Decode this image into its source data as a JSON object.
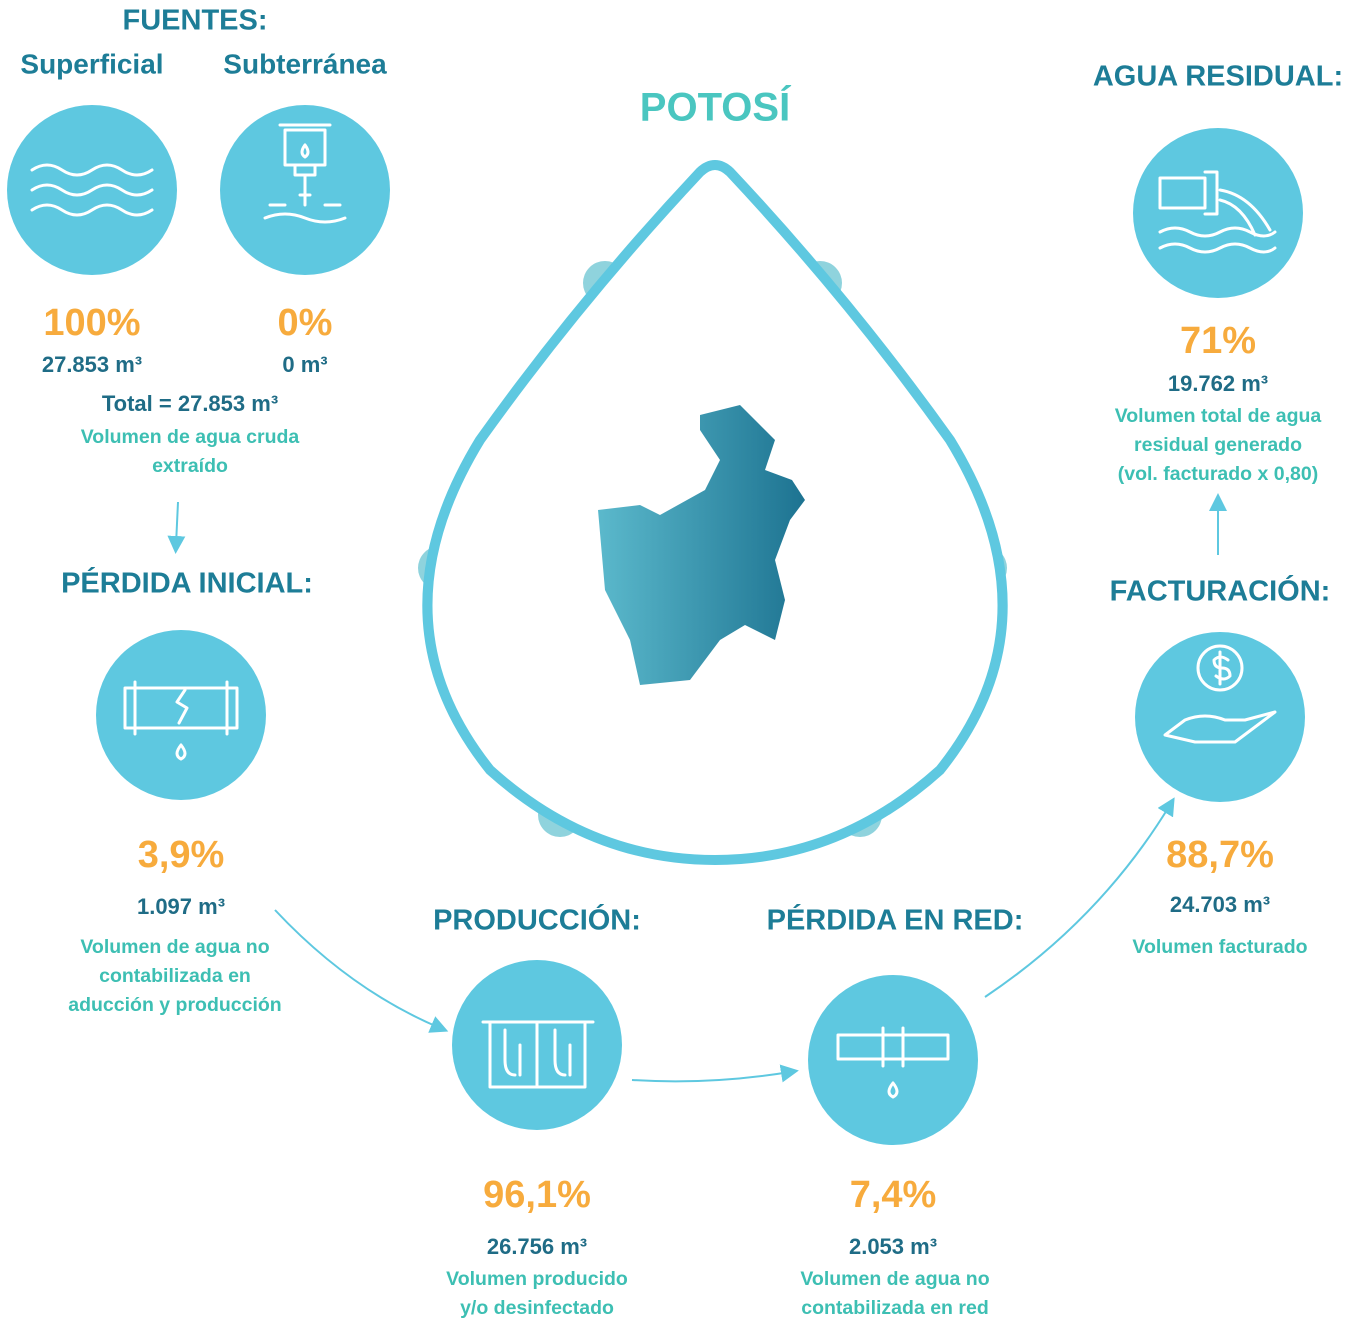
{
  "title": "POTOSÍ",
  "fuentes": {
    "title": "FUENTES:",
    "superficial": {
      "label": "Superficial",
      "percent": "100%",
      "volume": "27.853 m³"
    },
    "subterranea": {
      "label": "Subterránea",
      "percent": "0%",
      "volume": "0 m³"
    },
    "total": "Total = 27.853 m³",
    "description": [
      "Volumen de agua cruda",
      "extraído"
    ]
  },
  "perdida_inicial": {
    "title": "PÉRDIDA INICIAL:",
    "percent": "3,9%",
    "volume": "1.097 m³",
    "description": [
      "Volumen de agua no",
      "contabilizada en",
      "aducción y producción"
    ]
  },
  "produccion": {
    "title": "PRODUCCIÓN:",
    "percent": "96,1%",
    "volume": "26.756 m³",
    "description": [
      "Volumen producido",
      "y/o desinfectado"
    ]
  },
  "perdida_red": {
    "title": "PÉRDIDA EN RED:",
    "percent": "7,4%",
    "volume": "2.053 m³",
    "description": [
      "Volumen de agua no",
      "contabilizada en red"
    ]
  },
  "facturacion": {
    "title": "FACTURACIÓN:",
    "percent": "88,7%",
    "volume": "24.703  m³",
    "description": [
      "Volumen facturado"
    ]
  },
  "agua_residual": {
    "title": "AGUA RESIDUAL:",
    "percent": "71%",
    "volume": "19.762 m³",
    "description": [
      "Volumen total de agua",
      "residual generado",
      "(vol. facturado x 0,80)"
    ]
  }
}
